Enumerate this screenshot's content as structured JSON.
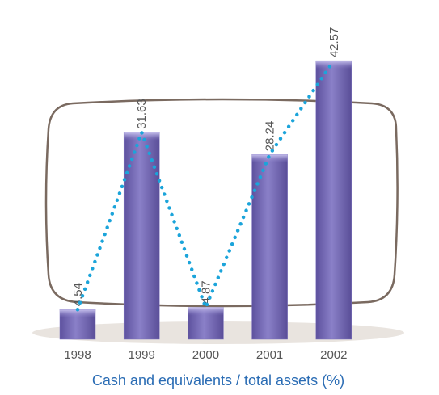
{
  "chart_data": {
    "type": "bar",
    "title": "Cash and equivalents / total assets (%)",
    "categories": [
      "1998",
      "1999",
      "2000",
      "2001",
      "2002"
    ],
    "values": [
      4.54,
      31.63,
      4.87,
      28.24,
      42.57
    ],
    "color": "#7b70bd",
    "line_color": "#1ba4da"
  }
}
